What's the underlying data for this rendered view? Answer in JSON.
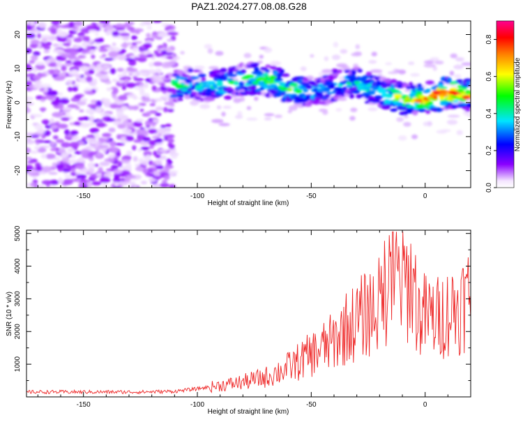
{
  "figure_title": "PAZ1.2024.277.08.08.G28",
  "chart_data": [
    {
      "type": "heatmap",
      "xlabel": "Height of straight line (km)",
      "ylabel": "Frequency (Hz)",
      "xlim": [
        -175,
        20
      ],
      "ylim": [
        -25,
        24
      ],
      "x_ticks": [
        -150,
        -100,
        -50,
        0
      ],
      "x_tick_labels": [
        "-150",
        "-100",
        "-50",
        "0"
      ],
      "y_ticks": [
        20,
        10,
        0,
        -10,
        -20
      ],
      "y_tick_labels": [
        "20",
        "10",
        "0",
        "-10",
        "-20"
      ],
      "colorbar": {
        "label": "Normalized spectral amplitude",
        "range": [
          0.0,
          0.9
        ],
        "ticks": [
          0.0,
          0.2,
          0.4,
          0.6,
          0.8
        ],
        "tick_labels": [
          "0.0",
          "0.2",
          "0.4",
          "0.6",
          "0.8"
        ],
        "colors": [
          "#ffffff",
          "#8a00ff",
          "#0000ff",
          "#00e5ff",
          "#00ff00",
          "#ffff00",
          "#ff8000",
          "#ff0000",
          "#ff00a0"
        ]
      },
      "ridge": {
        "x": [
          -110,
          -100,
          -90,
          -80,
          -70,
          -60,
          -50,
          -40,
          -30,
          -20,
          -10,
          0,
          10,
          20
        ],
        "y": [
          5,
          5,
          5,
          7,
          7,
          4,
          3,
          5,
          6,
          3,
          1,
          1,
          3,
          2
        ],
        "amplitude": [
          0.5,
          0.4,
          0.45,
          0.5,
          0.6,
          0.55,
          0.45,
          0.4,
          0.45,
          0.5,
          0.6,
          0.75,
          0.85,
          0.8
        ]
      },
      "grid": false
    },
    {
      "type": "line",
      "xlabel": "Height of straight line (km)",
      "ylabel": "SNR (10 * v/v)",
      "xlim": [
        -175,
        20
      ],
      "ylim": [
        0,
        5100
      ],
      "x_ticks": [
        -150,
        -100,
        -50,
        0
      ],
      "x_tick_labels": [
        "-150",
        "-100",
        "-50",
        "0"
      ],
      "y_ticks": [
        1000,
        2000,
        3000,
        4000,
        5000
      ],
      "y_tick_labels": [
        "1000",
        "2000",
        "3000",
        "4000",
        "5000"
      ],
      "series": [
        {
          "color": "#ee2222",
          "x": [
            -175,
            -150,
            -125,
            -110,
            -100,
            -90,
            -80,
            -70,
            -60,
            -50,
            -45,
            -40,
            -35,
            -30,
            -25,
            -20,
            -17,
            -15,
            -13,
            -10,
            -5,
            -3,
            0,
            5,
            10,
            15,
            20
          ],
          "y": [
            150,
            150,
            150,
            170,
            250,
            350,
            450,
            600,
            900,
            1300,
            1500,
            1700,
            2100,
            2300,
            2600,
            2800,
            3300,
            4000,
            3800,
            3500,
            3500,
            2500,
            2500,
            2400,
            2600,
            2800,
            3100
          ]
        }
      ],
      "grid": false
    }
  ]
}
